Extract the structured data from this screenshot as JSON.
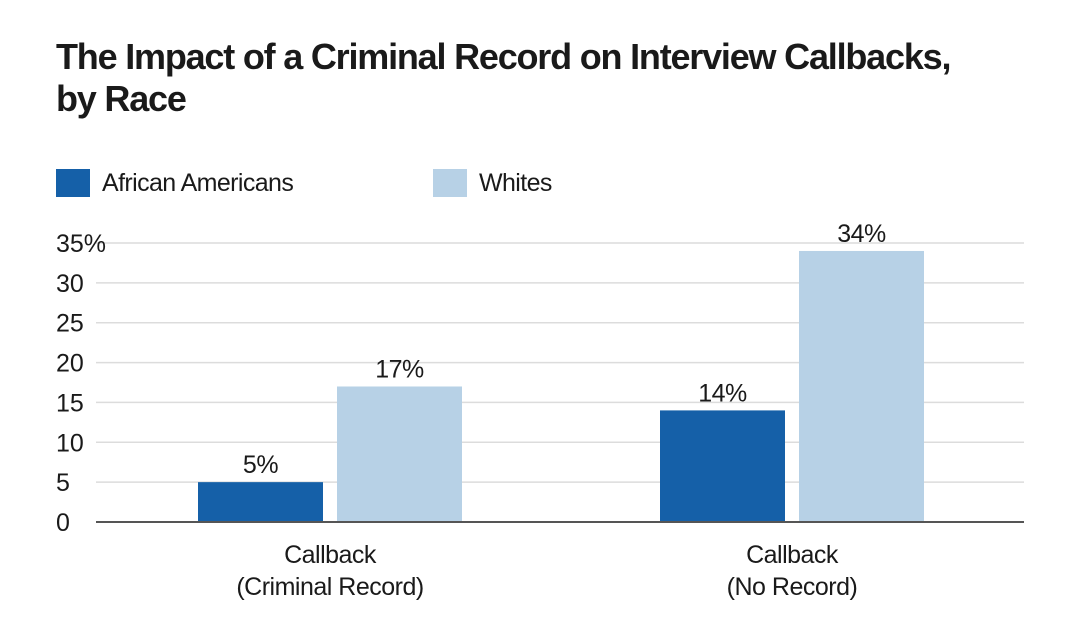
{
  "chart_data": {
    "type": "bar",
    "title_lines": [
      "The Impact of a Criminal Record on Interview Callbacks,",
      "by Race"
    ],
    "categories": [
      [
        "Callback",
        "(Criminal Record)"
      ],
      [
        "Callback",
        "(No Record)"
      ]
    ],
    "series": [
      {
        "name": "African Americans",
        "color": "#1560a8",
        "values": [
          5,
          14
        ],
        "labels": [
          "5%",
          "14%"
        ]
      },
      {
        "name": "Whites",
        "color": "#b7d1e6",
        "values": [
          17,
          34
        ],
        "labels": [
          "17%",
          "34%"
        ]
      }
    ],
    "ylim": [
      0,
      35
    ],
    "yticks": [
      0,
      5,
      10,
      15,
      20,
      25,
      30,
      35
    ],
    "ytick_labels": [
      "0",
      "5",
      "10",
      "15",
      "20",
      "25",
      "30",
      "35%"
    ],
    "grid": true,
    "legend_position": "top-left",
    "xlabel": "",
    "ylabel": ""
  }
}
